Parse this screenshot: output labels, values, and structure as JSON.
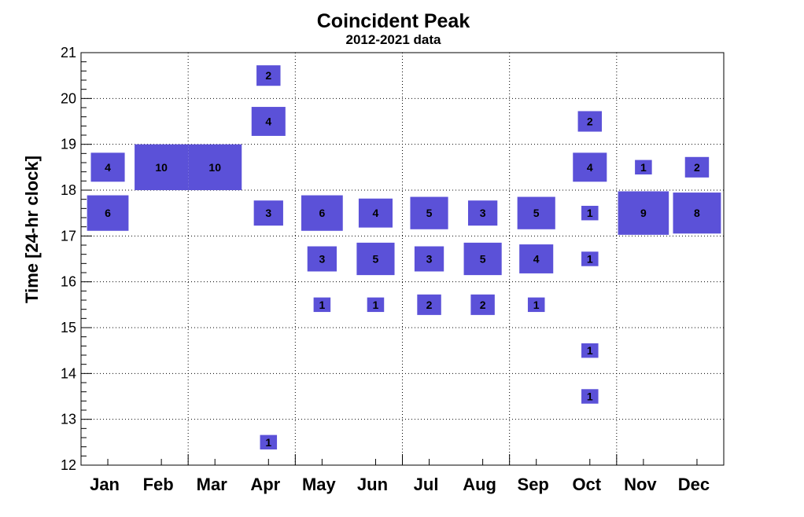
{
  "chart_data": {
    "type": "heatmap",
    "title": "Coincident Peak",
    "subtitle": "2012-2021 data",
    "xlabel": "",
    "ylabel": "Time [24-hr clock]",
    "categories": [
      "Jan",
      "Feb",
      "Mar",
      "Apr",
      "May",
      "Jun",
      "Jul",
      "Aug",
      "Sep",
      "Oct",
      "Nov",
      "Dec"
    ],
    "ylim": [
      12,
      21
    ],
    "yticks": [
      "12",
      "13",
      "14",
      "15",
      "16",
      "17",
      "18",
      "19",
      "20",
      "21"
    ],
    "grid": true,
    "bar_color": "#5b51d8",
    "cells": [
      {
        "month": "Jan",
        "time_start": 18,
        "value": 4
      },
      {
        "month": "Jan",
        "time_start": 17,
        "value": 6
      },
      {
        "month": "Feb",
        "time_start": 18,
        "value": 10
      },
      {
        "month": "Mar",
        "time_start": 18,
        "value": 10
      },
      {
        "month": "Apr",
        "time_start": 20,
        "value": 2
      },
      {
        "month": "Apr",
        "time_start": 19,
        "value": 4
      },
      {
        "month": "Apr",
        "time_start": 17,
        "value": 3
      },
      {
        "month": "Apr",
        "time_start": 12,
        "value": 1
      },
      {
        "month": "May",
        "time_start": 17,
        "value": 6
      },
      {
        "month": "May",
        "time_start": 16,
        "value": 3
      },
      {
        "month": "May",
        "time_start": 15,
        "value": 1
      },
      {
        "month": "Jun",
        "time_start": 17,
        "value": 4
      },
      {
        "month": "Jun",
        "time_start": 16,
        "value": 5
      },
      {
        "month": "Jun",
        "time_start": 15,
        "value": 1
      },
      {
        "month": "Jul",
        "time_start": 17,
        "value": 5
      },
      {
        "month": "Jul",
        "time_start": 16,
        "value": 3
      },
      {
        "month": "Jul",
        "time_start": 15,
        "value": 2
      },
      {
        "month": "Aug",
        "time_start": 17,
        "value": 3
      },
      {
        "month": "Aug",
        "time_start": 16,
        "value": 5
      },
      {
        "month": "Aug",
        "time_start": 15,
        "value": 2
      },
      {
        "month": "Sep",
        "time_start": 17,
        "value": 5
      },
      {
        "month": "Sep",
        "time_start": 16,
        "value": 4
      },
      {
        "month": "Sep",
        "time_start": 15,
        "value": 1
      },
      {
        "month": "Oct",
        "time_start": 19,
        "value": 2
      },
      {
        "month": "Oct",
        "time_start": 18,
        "value": 4
      },
      {
        "month": "Oct",
        "time_start": 17,
        "value": 1
      },
      {
        "month": "Oct",
        "time_start": 16,
        "value": 1
      },
      {
        "month": "Oct",
        "time_start": 14,
        "value": 1
      },
      {
        "month": "Oct",
        "time_start": 13,
        "value": 1
      },
      {
        "month": "Nov",
        "time_start": 18,
        "value": 1
      },
      {
        "month": "Nov",
        "time_start": 17,
        "value": 9
      },
      {
        "month": "Dec",
        "time_start": 18,
        "value": 2
      },
      {
        "month": "Dec",
        "time_start": 17,
        "value": 8
      }
    ],
    "max_value": 10
  }
}
